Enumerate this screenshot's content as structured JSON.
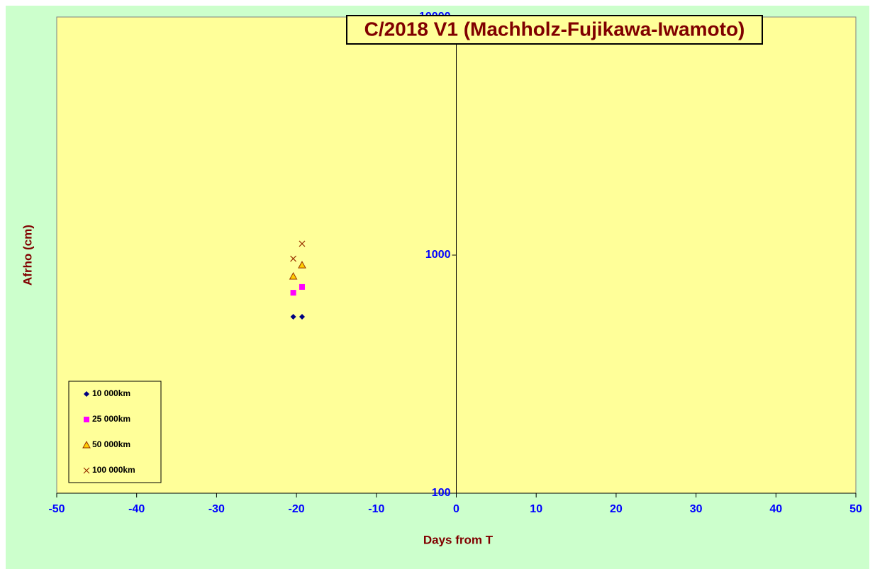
{
  "chart_data": {
    "type": "scatter",
    "title": "C/2018 V1 (Machholz-Fujikawa-Iwamoto)",
    "x_label": "Days from T",
    "y_label": "Afrho (cm)",
    "xlim": [
      -50,
      50
    ],
    "xticks": [
      -50,
      -40,
      -30,
      -20,
      -10,
      0,
      10,
      20,
      30,
      40,
      50
    ],
    "ylim": [
      100,
      10000
    ],
    "yticks": [
      100,
      1000,
      10000
    ],
    "y_log_scale": true,
    "y_axis_crosses_x": 0,
    "legend_position": "lower-left",
    "series": [
      {
        "name": "10 000km",
        "color": "#000080",
        "marker": "diamond",
        "x": [
          -20.4,
          -19.3
        ],
        "values": [
          551,
          551
        ]
      },
      {
        "name": "25 000km",
        "color": "#ff00ff",
        "marker": "square",
        "x": [
          -20.4,
          -19.3
        ],
        "values": [
          695,
          735
        ]
      },
      {
        "name": "50 000km",
        "color": "#ffcc00",
        "marker": "triangle",
        "x": [
          -20.4,
          -19.3
        ],
        "values": [
          814,
          908
        ]
      },
      {
        "name": "100 000km",
        "color": "#993300",
        "marker": "cross",
        "x": [
          -20.4,
          -19.3
        ],
        "values": [
          966,
          1116
        ]
      }
    ]
  }
}
